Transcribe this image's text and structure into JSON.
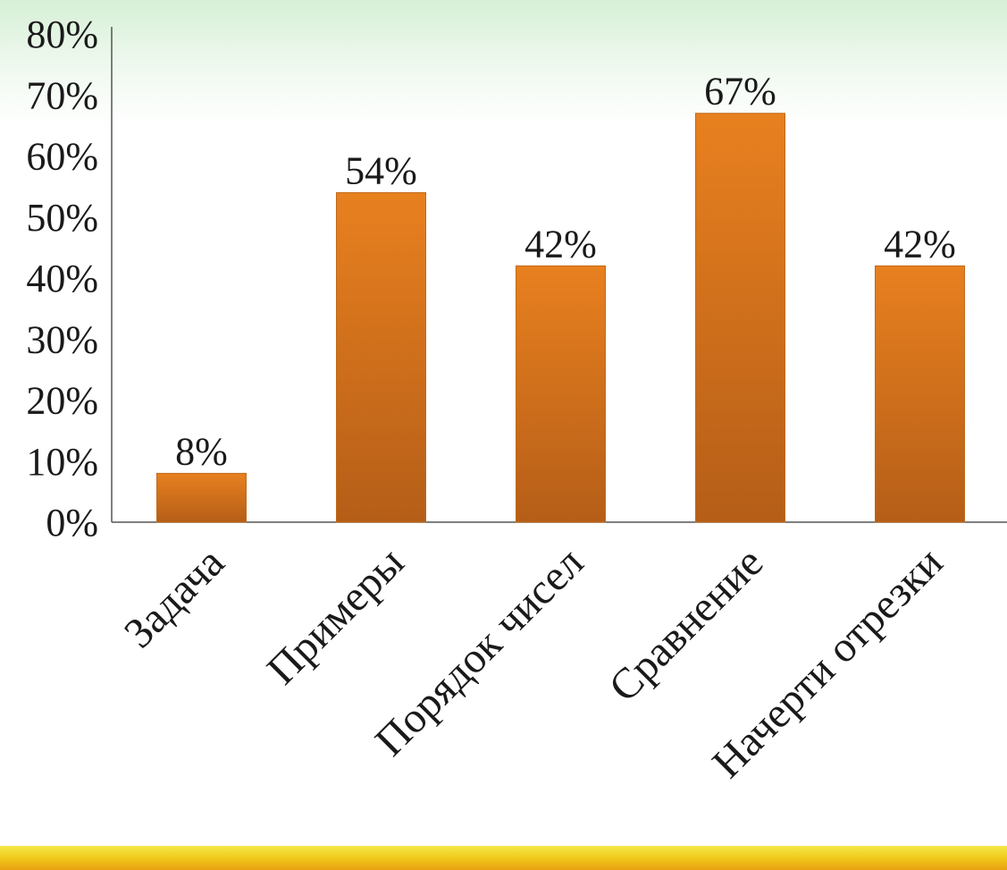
{
  "chart_data": {
    "type": "bar",
    "categories": [
      "Задача",
      "Примеры",
      "Порядок чисел",
      "Сравнение",
      "Начерти отрезки"
    ],
    "values": [
      8,
      54,
      42,
      67,
      42
    ],
    "value_labels": [
      "8%",
      "54%",
      "42%",
      "67%",
      "42%"
    ],
    "ylim": [
      0,
      80
    ],
    "y_ticks": [
      "0%",
      "10%",
      "20%",
      "30%",
      "40%",
      "50%",
      "60%",
      "70%",
      "80%"
    ],
    "bar_color": "#e07a20",
    "grid": false
  },
  "colors": {
    "bar_top": "#e8801f",
    "bar_bottom": "#b55e18",
    "footer": "#f0c81a"
  }
}
